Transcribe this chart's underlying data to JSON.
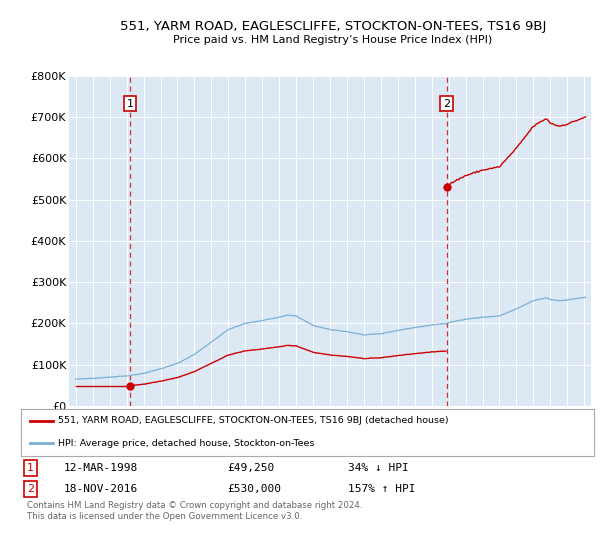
{
  "title": "551, YARM ROAD, EAGLESCLIFFE, STOCKTON-ON-TEES, TS16 9BJ",
  "subtitle": "Price paid vs. HM Land Registry’s House Price Index (HPI)",
  "background_color": "#dce9f5",
  "fig_bg_color": "#ffffff",
  "red_color": "#cc0000",
  "blue_color": "#7bafd4",
  "ylim": [
    0,
    800000
  ],
  "yticks": [
    0,
    100000,
    200000,
    300000,
    400000,
    500000,
    600000,
    700000,
    800000
  ],
  "ytick_labels": [
    "£0",
    "£100K",
    "£200K",
    "£300K",
    "£400K",
    "£500K",
    "£600K",
    "£700K",
    "£800K"
  ],
  "xlim_start": 1994.6,
  "xlim_end": 2025.4,
  "sale1_year": 1998.19,
  "sale1_price": 49250,
  "sale2_year": 2016.88,
  "sale2_price": 530000,
  "sale1_date": "12-MAR-1998",
  "sale1_display": "£49,250",
  "sale1_hpi": "34% ↓ HPI",
  "sale2_date": "18-NOV-2016",
  "sale2_display": "£530,000",
  "sale2_hpi": "157% ↑ HPI",
  "legend_line1": "551, YARM ROAD, EAGLESCLIFFE, STOCKTON-ON-TEES, TS16 9BJ (detached house)",
  "legend_line2": "HPI: Average price, detached house, Stockton-on-Tees",
  "footer": "Contains HM Land Registry data © Crown copyright and database right 2024.\nThis data is licensed under the Open Government Licence v3.0."
}
